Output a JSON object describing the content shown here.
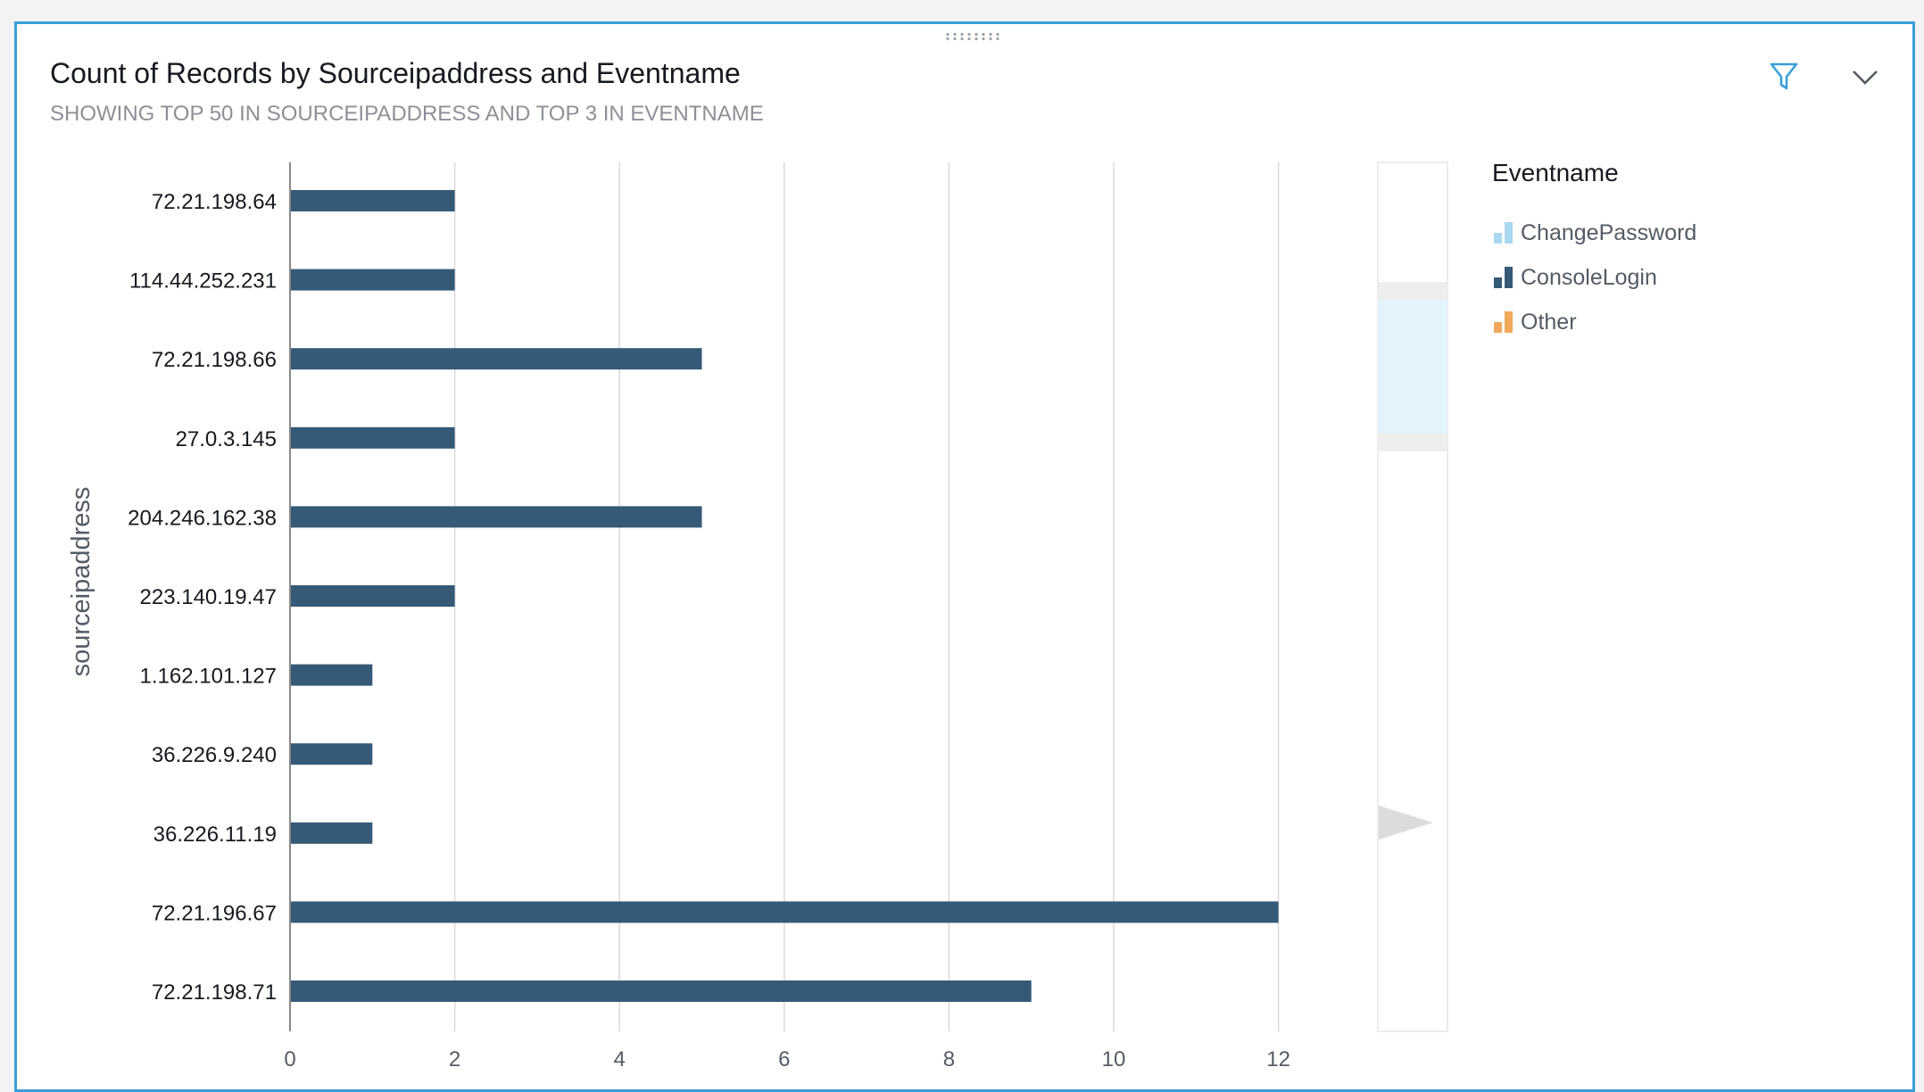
{
  "header": {
    "title": "Count of Records by Sourceipaddress and Eventname",
    "subtitle": "SHOWING TOP 50 IN SOURCEIPADDRESS AND TOP 3 IN EVENTNAME"
  },
  "toolbar": {
    "filter_icon": "filter-icon",
    "expand_icon": "chevron-down-icon"
  },
  "colors": {
    "panel_border": "#3a9fd8",
    "ChangePassword": "#a9d8f1",
    "ConsoleLogin": "#355a77",
    "Other": "#f0a95a"
  },
  "legend": {
    "title": "Eventname",
    "items": [
      {
        "label": "ChangePassword",
        "color": "#a9d8f1"
      },
      {
        "label": "ConsoleLogin",
        "color": "#355a77"
      },
      {
        "label": "Other",
        "color": "#f0a95a"
      }
    ]
  },
  "chart_data": {
    "type": "bar",
    "orientation": "horizontal",
    "title": "Count of Records by Sourceipaddress and Eventname",
    "subtitle": "SHOWING TOP 50 IN SOURCEIPADDRESS AND TOP 3 IN EVENTNAME",
    "ylabel": "sourceipaddress",
    "xlabel": "",
    "categories": [
      "72.21.198.64",
      "114.44.252.231",
      "72.21.198.66",
      "27.0.3.145",
      "204.246.162.38",
      "223.140.19.47",
      "1.162.101.127",
      "36.226.9.240",
      "36.226.11.19",
      "72.21.196.67",
      "72.21.198.71"
    ],
    "series": [
      {
        "name": "ConsoleLogin",
        "color": "#355a77",
        "values": [
          2,
          2,
          5,
          2,
          5,
          2,
          1,
          1,
          1,
          12,
          9
        ]
      }
    ],
    "x_ticks": [
      0,
      2,
      4,
      6,
      8,
      10,
      12
    ],
    "xlim": [
      0,
      13.6
    ],
    "grid": "vertical",
    "legend_position": "right"
  }
}
